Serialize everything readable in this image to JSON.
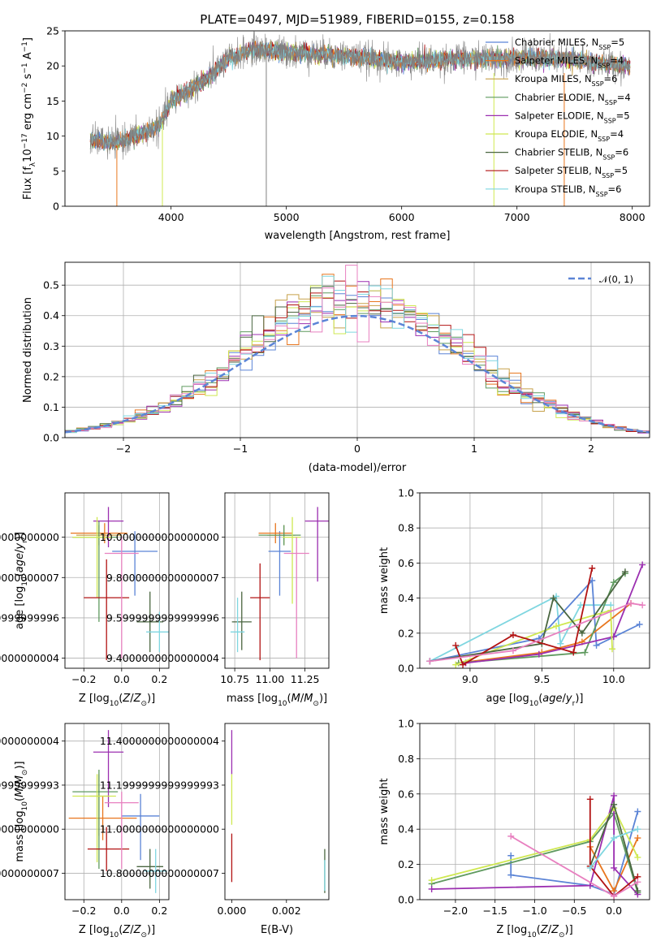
{
  "title": "PLATE=0497, MJD=51989, FIBERID=0155, z=0.158",
  "colors": {
    "chabrier_miles": "#5b84d6",
    "salpeter_miles": "#e8761e",
    "kroupa_miles": "#c7a14a",
    "chabrier_elodie": "#5f9a5f",
    "salpeter_elodie": "#9b2fb0",
    "kroupa_elodie": "#cfe851",
    "chabrier_stelib": "#4a6640",
    "salpeter_stelib": "#b21313",
    "kroupa_stelib": "#7fd6e0",
    "pink": "#e880c0",
    "data": "#808080",
    "normal": "#5b84d6"
  },
  "chart_data": [
    {
      "id": "spectrum",
      "type": "line",
      "title": "PLATE=0497, MJD=51989, FIBERID=0155, z=0.158",
      "xlabel": "wavelength [Angstrom, rest frame]",
      "ylabel": "Flux [f_λ 10^-17 erg cm^-2 s^-1 A^-1]",
      "xlim": [
        3080,
        8150
      ],
      "ylim": [
        0,
        25
      ],
      "xticks": [
        4000,
        5000,
        6000,
        7000,
        8000
      ],
      "yticks": [
        0,
        5,
        10,
        15,
        20,
        25
      ],
      "legend_position": "top-right",
      "legend": [
        {
          "pre": "Chabrier MILES, N",
          "sub": "SSP",
          "post": "=5",
          "color": "chabrier_miles"
        },
        {
          "pre": "Salpeter MILES, N",
          "sub": "SSP",
          "post": "=4",
          "color": "salpeter_miles"
        },
        {
          "pre": "Kroupa MILES, N",
          "sub": "SSP",
          "post": "=6",
          "color": "kroupa_miles"
        },
        {
          "pre": "Chabrier ELODIE, N",
          "sub": "SSP",
          "post": "=4",
          "color": "chabrier_elodie"
        },
        {
          "pre": "Salpeter ELODIE, N",
          "sub": "SSP",
          "post": "=5",
          "color": "salpeter_elodie"
        },
        {
          "pre": "Kroupa ELODIE, N",
          "sub": "SSP",
          "post": "=4",
          "color": "kroupa_elodie"
        },
        {
          "pre": "Chabrier STELIB, N",
          "sub": "SSP",
          "post": "=6",
          "color": "chabrier_stelib"
        },
        {
          "pre": "Salpeter STELIB, N",
          "sub": "SSP",
          "post": "=5",
          "color": "salpeter_stelib"
        },
        {
          "pre": "Kroupa STELIB, N",
          "sub": "SSP",
          "post": "=6",
          "color": "kroupa_stelib"
        }
      ],
      "continuum": [
        [
          3300,
          9.5
        ],
        [
          3500,
          9
        ],
        [
          3700,
          10
        ],
        [
          3900,
          11.5
        ],
        [
          4000,
          15
        ],
        [
          4100,
          16
        ],
        [
          4300,
          18
        ],
        [
          4500,
          21
        ],
        [
          4700,
          22.3
        ],
        [
          5000,
          22
        ],
        [
          5500,
          21.5
        ],
        [
          6000,
          20.5
        ],
        [
          6500,
          21
        ],
        [
          7000,
          21.2
        ],
        [
          7400,
          21
        ],
        [
          7800,
          20.2
        ],
        [
          7980,
          20
        ]
      ],
      "features": [
        {
          "x": 4826,
          "ylow": 0,
          "yhigh": 24,
          "color": "data"
        },
        {
          "x": 3530,
          "ylow": 0,
          "yhigh": 8,
          "color": "salpeter_miles"
        },
        {
          "x": 3925,
          "ylow": 0,
          "yhigh": 12,
          "color": "kroupa_elodie"
        },
        {
          "x": 6800,
          "ylow": 0,
          "yhigh": 19,
          "color": "kroupa_elodie"
        },
        {
          "x": 7410,
          "ylow": 0,
          "yhigh": 19,
          "color": "salpeter_miles"
        }
      ]
    },
    {
      "id": "residuals",
      "type": "step",
      "xlabel": "(data-model)/error",
      "ylabel": "Normed distribution",
      "xlim": [
        -2.5,
        2.5
      ],
      "ylim": [
        0,
        0.575
      ],
      "xticks": [
        -2,
        -1,
        0,
        1,
        2
      ],
      "yticks": [
        0.0,
        0.1,
        0.2,
        0.3,
        0.4,
        0.5
      ],
      "grid": true,
      "legend": [
        {
          "label": "𝒩(0, 1)",
          "style": "dashed",
          "color": "normal"
        }
      ],
      "legend_position": "top-right",
      "bin_width": 0.1
    },
    {
      "id": "age_vs_Z",
      "type": "errorbar",
      "xlabel": "Z [log10(Z/Z⊙)]",
      "ylabel": "age [log10(age/yr)]",
      "xlim": [
        -0.3,
        0.25
      ],
      "ylim": [
        9.35,
        10.22
      ],
      "xticks": [
        -0.2,
        0.0,
        0.2
      ],
      "yticks": [
        9.4,
        9.6,
        9.8,
        10.0
      ],
      "grid": true,
      "points": [
        {
          "x": 0.07,
          "y": 9.93,
          "xerr": [
            0.12,
            0.12
          ],
          "yerr": [
            0.22,
            0.1
          ],
          "color": "chabrier_miles"
        },
        {
          "x": -0.09,
          "y": 10.02,
          "xerr": [
            0.18,
            0.12
          ],
          "yerr": [
            0.05,
            0.05
          ],
          "color": "salpeter_miles"
        },
        {
          "x": -0.12,
          "y": 10.01,
          "xerr": [
            0.12,
            0.12
          ],
          "yerr": [
            0.05,
            0.05
          ],
          "color": "kroupa_miles"
        },
        {
          "x": -0.12,
          "y": 10.0,
          "xerr": [
            0.14,
            0.1
          ],
          "yerr": [
            0.42,
            0.08
          ],
          "color": "chabrier_elodie"
        },
        {
          "x": -0.07,
          "y": 10.08,
          "xerr": [
            0.08,
            0.08
          ],
          "yerr": [
            0.13,
            0.07
          ],
          "color": "salpeter_elodie"
        },
        {
          "x": -0.13,
          "y": 10.0,
          "xerr": [
            0.13,
            0.08
          ],
          "yerr": [
            0.3,
            0.1
          ],
          "color": "kroupa_elodie"
        },
        {
          "x": 0.15,
          "y": 9.58,
          "xerr": [
            0.07,
            0.07
          ],
          "yerr": [
            0.15,
            0.15
          ],
          "color": "chabrier_stelib"
        },
        {
          "x": -0.08,
          "y": 9.7,
          "xerr": [
            0.12,
            0.12
          ],
          "yerr": [
            0.31,
            0.19
          ],
          "color": "salpeter_stelib"
        },
        {
          "x": 0.2,
          "y": 9.53,
          "xerr": [
            0.07,
            0.07
          ],
          "yerr": [
            0.1,
            0.1
          ],
          "color": "kroupa_stelib"
        },
        {
          "x": 0.0,
          "y": 9.92,
          "xerr": [
            0.09,
            0.09
          ],
          "yerr": [
            0.52,
            0.08
          ],
          "color": "pink"
        }
      ]
    },
    {
      "id": "age_vs_mass",
      "type": "errorbar",
      "xlabel": "mass [log10(M/M⊙)]",
      "ylabel": "",
      "xlim": [
        10.68,
        11.42
      ],
      "ylim": [
        9.35,
        10.22
      ],
      "xticks": [
        10.75,
        11.0,
        11.25
      ],
      "yticks": [
        9.4,
        9.6,
        9.8,
        10.0
      ],
      "grid": true,
      "points": [
        {
          "x": 11.07,
          "y": 9.93,
          "xerr": [
            0.08,
            0.08
          ],
          "yerr": [
            0.22,
            0.1
          ],
          "color": "chabrier_miles"
        },
        {
          "x": 11.04,
          "y": 10.02,
          "xerr": [
            0.12,
            0.12
          ],
          "yerr": [
            0.05,
            0.05
          ],
          "color": "salpeter_miles"
        },
        {
          "x": 11.1,
          "y": 10.01,
          "xerr": [
            0.12,
            0.08
          ],
          "yerr": [
            0.05,
            0.05
          ],
          "color": "kroupa_miles"
        },
        {
          "x": 11.1,
          "y": 10.01,
          "xerr": [
            0.18,
            0.12
          ],
          "yerr": [
            0.05,
            0.05
          ],
          "color": "chabrier_elodie"
        },
        {
          "x": 11.34,
          "y": 10.08,
          "xerr": [
            0.09,
            0.09
          ],
          "yerr": [
            0.3,
            0.07
          ],
          "color": "salpeter_elodie"
        },
        {
          "x": 11.16,
          "y": 10.0,
          "xerr": [
            0.07,
            0.06
          ],
          "yerr": [
            0.33,
            0.1
          ],
          "color": "kroupa_elodie"
        },
        {
          "x": 10.8,
          "y": 9.58,
          "xerr": [
            0.07,
            0.07
          ],
          "yerr": [
            0.14,
            0.15
          ],
          "color": "chabrier_stelib"
        },
        {
          "x": 10.93,
          "y": 9.7,
          "xerr": [
            0.07,
            0.07
          ],
          "yerr": [
            0.31,
            0.17
          ],
          "color": "salpeter_stelib"
        },
        {
          "x": 10.77,
          "y": 9.53,
          "xerr": [
            0.05,
            0.05
          ],
          "yerr": [
            0.1,
            0.17
          ],
          "color": "kroupa_stelib"
        },
        {
          "x": 11.19,
          "y": 9.92,
          "xerr": [
            0.09,
            0.09
          ],
          "yerr": [
            0.52,
            0.08
          ],
          "color": "pink"
        }
      ]
    },
    {
      "id": "weight_vs_age",
      "type": "line",
      "xlabel": "age [log10(age/yr)]",
      "ylabel": "mass weight",
      "xlim": [
        8.65,
        10.25
      ],
      "ylim": [
        0.0,
        1.0
      ],
      "xticks": [
        9.0,
        9.5,
        10.0
      ],
      "yticks": [
        0.0,
        0.2,
        0.4,
        0.6,
        0.8,
        1.0
      ],
      "grid": true,
      "series": [
        {
          "color": "kroupa_stelib",
          "x": [
            8.72,
            9.6,
            9.63,
            9.77,
            9.98
          ],
          "y": [
            0.04,
            0.41,
            0.14,
            0.36,
            0.36
          ]
        },
        {
          "color": "chabrier_miles",
          "x": [
            8.72,
            9.48,
            9.85,
            9.88,
            10.18
          ],
          "y": [
            0.04,
            0.17,
            0.5,
            0.13,
            0.25
          ]
        },
        {
          "color": "salpeter_miles",
          "x": [
            8.92,
            9.5,
            9.78,
            10.12
          ],
          "y": [
            0.03,
            0.09,
            0.15,
            0.37
          ]
        },
        {
          "color": "chabrier_elodie",
          "x": [
            8.92,
            9.8,
            10.0,
            10.08
          ],
          "y": [
            0.03,
            0.09,
            0.49,
            0.54
          ]
        },
        {
          "color": "salpeter_elodie",
          "x": [
            8.97,
            9.48,
            10.0,
            10.2
          ],
          "y": [
            0.03,
            0.08,
            0.18,
            0.59
          ]
        },
        {
          "color": "kroupa_elodie",
          "x": [
            8.9,
            9.6,
            9.98,
            9.99
          ],
          "y": [
            0.02,
            0.24,
            0.33,
            0.11
          ]
        },
        {
          "color": "chabrier_stelib",
          "x": [
            8.72,
            9.5,
            9.58,
            9.78,
            10.08
          ],
          "y": [
            0.04,
            0.14,
            0.4,
            0.2,
            0.55
          ]
        },
        {
          "color": "salpeter_stelib",
          "x": [
            8.9,
            8.95,
            9.3,
            9.72,
            9.85
          ],
          "y": [
            0.13,
            0.02,
            0.19,
            0.09,
            0.57
          ]
        },
        {
          "color": "pink",
          "x": [
            8.72,
            9.3,
            10.12,
            10.2
          ],
          "y": [
            0.04,
            0.1,
            0.37,
            0.36
          ]
        }
      ]
    },
    {
      "id": "mass_vs_Z",
      "type": "errorbar",
      "xlabel": "Z [log10(Z/Z⊙)]",
      "ylabel": "mass [log10(M/M⊙)]",
      "xlim": [
        -0.3,
        0.25
      ],
      "ylim": [
        10.68,
        11.48
      ],
      "xticks": [
        -0.2,
        0.0,
        0.2
      ],
      "yticks": [
        10.8,
        11.0,
        11.2,
        11.4
      ],
      "grid": true,
      "points": [
        {
          "x": 0.1,
          "y": 11.06,
          "xerr": [
            0.1,
            0.1
          ],
          "yerr": [
            0.2,
            0.1
          ],
          "color": "chabrier_miles"
        },
        {
          "x": -0.1,
          "y": 11.05,
          "xerr": [
            0.18,
            0.18
          ],
          "yerr": [
            0.1,
            0.1
          ],
          "color": "salpeter_miles"
        },
        {
          "x": -0.12,
          "y": 11.15,
          "xerr": [
            0.05,
            0.05
          ],
          "yerr": [
            0.18,
            0.1
          ],
          "color": "kroupa_miles"
        },
        {
          "x": -0.12,
          "y": 11.17,
          "xerr": [
            0.14,
            0.1
          ],
          "yerr": [
            0.35,
            0.1
          ],
          "color": "chabrier_elodie"
        },
        {
          "x": -0.07,
          "y": 11.35,
          "xerr": [
            0.08,
            0.08
          ],
          "yerr": [
            0.25,
            0.1
          ],
          "color": "salpeter_elodie"
        },
        {
          "x": -0.13,
          "y": 11.15,
          "xerr": [
            0.13,
            0.1
          ],
          "yerr": [
            0.3,
            0.1
          ],
          "color": "kroupa_elodie"
        },
        {
          "x": 0.15,
          "y": 10.83,
          "xerr": [
            0.07,
            0.07
          ],
          "yerr": [
            0.1,
            0.08
          ],
          "color": "chabrier_stelib"
        },
        {
          "x": -0.08,
          "y": 10.91,
          "xerr": [
            0.1,
            0.12
          ],
          "yerr": [
            0.1,
            0.1
          ],
          "color": "salpeter_stelib"
        },
        {
          "x": 0.18,
          "y": 10.81,
          "xerr": [
            0.06,
            0.06
          ],
          "yerr": [
            0.1,
            0.1
          ],
          "color": "kroupa_stelib"
        },
        {
          "x": 0.0,
          "y": 11.12,
          "xerr": [
            0.09,
            0.09
          ],
          "yerr": [
            0.3,
            0.05
          ],
          "color": "pink"
        }
      ]
    },
    {
      "id": "mass_vs_ebv",
      "type": "errorbar",
      "xlabel": "E(B-V)",
      "ylabel": "",
      "xlim": [
        -0.00025,
        0.00355
      ],
      "ylim": [
        10.68,
        11.48
      ],
      "xticks": [
        0.0,
        0.002
      ],
      "yticks": [
        10.8,
        11.0,
        11.2,
        11.4
      ],
      "grid": false,
      "points": [
        {
          "x": 0.0,
          "y": 11.35,
          "xerr": [
            0,
            0
          ],
          "yerr": [
            0.1,
            0.1
          ],
          "color": "salpeter_elodie"
        },
        {
          "x": 0.0,
          "y": 11.15,
          "xerr": [
            0,
            0
          ],
          "yerr": [
            0.13,
            0.1
          ],
          "color": "kroupa_elodie"
        },
        {
          "x": 0.0,
          "y": 10.91,
          "xerr": [
            0,
            0
          ],
          "yerr": [
            0.15,
            0.07
          ],
          "color": "salpeter_stelib"
        },
        {
          "x": 0.0034,
          "y": 10.81,
          "xerr": [
            0,
            0
          ],
          "yerr": [
            0.1,
            0.1
          ],
          "color": "chabrier_stelib"
        },
        {
          "x": 0.0034,
          "y": 10.79,
          "xerr": [
            0,
            0
          ],
          "yerr": [
            0.07,
            0.07
          ],
          "color": "kroupa_stelib"
        }
      ]
    },
    {
      "id": "weight_vs_Z",
      "type": "line",
      "xlabel": "Z [log10(Z/Z⊙)]",
      "ylabel": "mass weight",
      "xlim": [
        -2.45,
        0.45
      ],
      "ylim": [
        0.0,
        1.0
      ],
      "xticks": [
        -2.0,
        -1.5,
        -1.0,
        -0.5,
        0.0
      ],
      "yticks": [
        0.0,
        0.2,
        0.4,
        0.6,
        0.8,
        1.0
      ],
      "grid": true,
      "series": [
        {
          "color": "chabrier_miles",
          "x": [
            -1.3,
            -1.3,
            -0.3,
            0.0,
            0.3
          ],
          "y": [
            0.25,
            0.14,
            0.08,
            0.03,
            0.5
          ]
        },
        {
          "color": "salpeter_miles",
          "x": [
            -0.3,
            0.0,
            0.3
          ],
          "y": [
            0.3,
            0.05,
            0.35
          ]
        },
        {
          "color": "chabrier_elodie",
          "x": [
            -2.3,
            -0.3,
            0.0,
            0.3
          ],
          "y": [
            0.09,
            0.33,
            0.49,
            0.04
          ]
        },
        {
          "color": "salpeter_elodie",
          "x": [
            -2.3,
            -0.3,
            0.0,
            0.0,
            0.3
          ],
          "y": [
            0.06,
            0.08,
            0.59,
            0.18,
            0.03
          ]
        },
        {
          "color": "kroupa_elodie",
          "x": [
            -2.3,
            -0.3,
            0.0,
            0.3
          ],
          "y": [
            0.11,
            0.34,
            0.52,
            0.24
          ]
        },
        {
          "color": "chabrier_stelib",
          "x": [
            -0.3,
            0.0,
            0.3
          ],
          "y": [
            0.19,
            0.54,
            0.05
          ]
        },
        {
          "color": "salpeter_stelib",
          "x": [
            -0.3,
            -0.3,
            0.0,
            0.3
          ],
          "y": [
            0.57,
            0.19,
            0.02,
            0.13
          ]
        },
        {
          "color": "kroupa_stelib",
          "x": [
            -0.3,
            0.0,
            0.3
          ],
          "y": [
            0.18,
            0.35,
            0.4
          ]
        },
        {
          "color": "pink",
          "x": [
            -1.3,
            0.0,
            0.3
          ],
          "y": [
            0.36,
            0.02,
            0.1
          ]
        }
      ]
    }
  ]
}
